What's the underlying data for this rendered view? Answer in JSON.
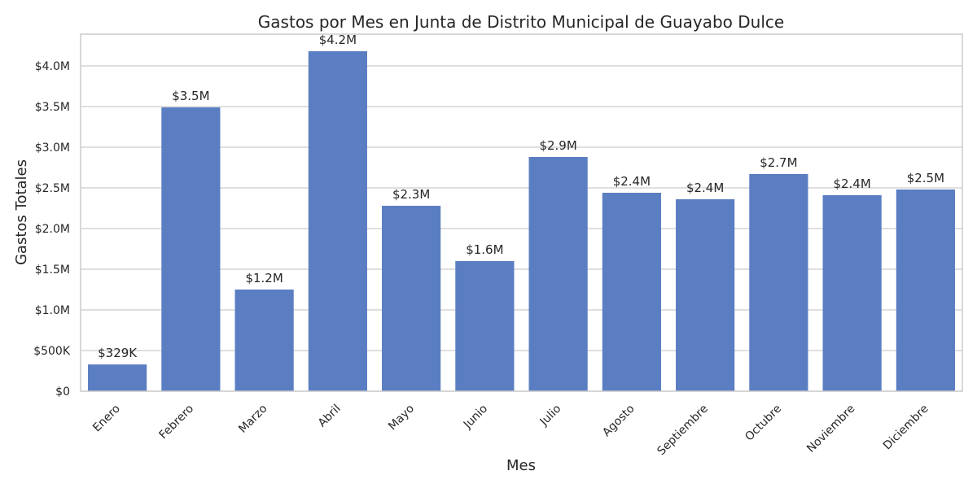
{
  "chart_data": {
    "type": "bar",
    "title": "Gastos por Mes en Junta de Distrito Municipal de Guayabo Dulce",
    "xlabel": "Mes",
    "ylabel": "Gastos Totales",
    "categories": [
      "Enero",
      "Febrero",
      "Marzo",
      "Abril",
      "Mayo",
      "Junio",
      "Julio",
      "Agosto",
      "Septiembre",
      "Octubre",
      "Noviembre",
      "Diciembre"
    ],
    "values": [
      329000,
      3490000,
      1250000,
      4180000,
      2280000,
      1600000,
      2880000,
      2440000,
      2360000,
      2670000,
      2410000,
      2480000
    ],
    "value_labels": [
      "$329K",
      "$3.5M",
      "$1.2M",
      "$4.2M",
      "$2.3M",
      "$1.6M",
      "$2.9M",
      "$2.4M",
      "$2.4M",
      "$2.7M",
      "$2.4M",
      "$2.5M"
    ],
    "yticks": [
      0,
      500000,
      1000000,
      1500000,
      2000000,
      2500000,
      3000000,
      3500000,
      4000000
    ],
    "ytick_labels": [
      "$0",
      "$500K",
      "$1.0M",
      "$1.5M",
      "$2.0M",
      "$2.5M",
      "$3.0M",
      "$3.5M",
      "$4.0M"
    ],
    "ylim": [
      0,
      4390000
    ],
    "grid": true,
    "bar_color": "#5b7ec2",
    "grid_color": "#cccccc"
  }
}
